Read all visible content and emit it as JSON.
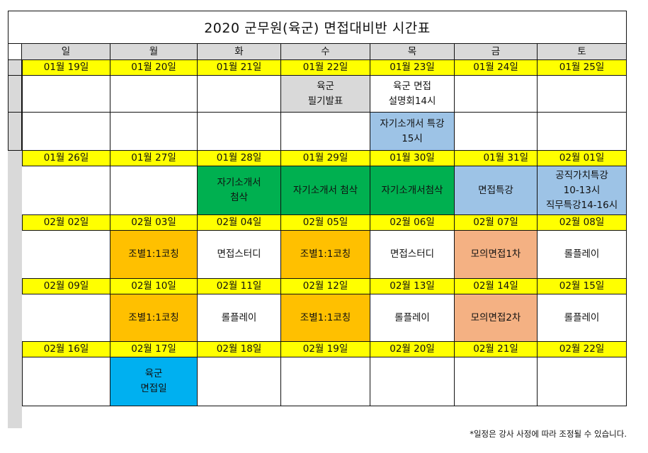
{
  "title": "2020 군무원(육군) 면접대비반 시간표",
  "colors": {
    "date_bg": "#ffff00",
    "header_bg": "#d9d9d9",
    "gray_event": "#d9d9d9",
    "blue_light": "#9dc3e6",
    "green": "#00b050",
    "orange": "#ffc000",
    "salmon": "#f4b183",
    "cyan": "#00b0f0",
    "white": "#ffffff"
  },
  "weekdays": [
    "일",
    "월",
    "화",
    "수",
    "목",
    "금",
    "토"
  ],
  "weeks": [
    {
      "dates": [
        "01월 19일",
        "01월 20일",
        "01월 21일",
        "01월 22일",
        "01월 23일",
        "01월 24일",
        "01월 25일"
      ],
      "rows": [
        [
          {
            "text": "",
            "color": "white"
          },
          {
            "text": "",
            "color": "white"
          },
          {
            "text": "",
            "color": "white"
          },
          {
            "text": "육군\n필기발표",
            "color": "gray_event"
          },
          {
            "text": "육군 면접\n설명회14시",
            "color": "white"
          },
          {
            "text": "",
            "color": "white"
          },
          {
            "text": "",
            "color": "white"
          }
        ],
        [
          {
            "text": "",
            "color": "white"
          },
          {
            "text": "",
            "color": "white"
          },
          {
            "text": "",
            "color": "white"
          },
          {
            "text": "",
            "color": "white"
          },
          {
            "text": "자기소개서 특강\n15시",
            "color": "blue_light"
          },
          {
            "text": "",
            "color": "white"
          },
          {
            "text": "",
            "color": "white"
          }
        ]
      ]
    },
    {
      "dates": [
        "01월 26일",
        "01월 27일",
        "01월 28일",
        "01월 29일",
        "01월 30일",
        "01월 31일",
        "02월 01일"
      ],
      "rows": [
        [
          {
            "text": "",
            "color": "white"
          },
          {
            "text": "",
            "color": "white"
          },
          {
            "text": "자기소개서\n첨삭",
            "color": "green"
          },
          {
            "text": "자기소개서 첨삭",
            "color": "green"
          },
          {
            "text": "자기소개서첨삭",
            "color": "green"
          },
          {
            "text": "면접특강",
            "color": "blue_light"
          },
          {
            "text": "공직가치특강\n10-13시\n직무특강14-16시",
            "color": "blue_light"
          }
        ]
      ]
    },
    {
      "dates": [
        "02월 02일",
        "02월 03일",
        "02월 04일",
        "02월 05일",
        "02월 06일",
        "02월 07일",
        "02월 08일"
      ],
      "rows": [
        [
          {
            "text": "",
            "color": "white"
          },
          {
            "text": "조별1:1코칭",
            "color": "orange"
          },
          {
            "text": "면접스터디",
            "color": "white"
          },
          {
            "text": "조별1:1코칭",
            "color": "orange"
          },
          {
            "text": "면접스터디",
            "color": "white"
          },
          {
            "text": "모의면접1차",
            "color": "salmon"
          },
          {
            "text": "롤플레이",
            "color": "white"
          }
        ]
      ]
    },
    {
      "dates": [
        "02월 09일",
        "02월 10일",
        "02월 11일",
        "02월 12일",
        "02월 13일",
        "02월 14일",
        "02월 15일"
      ],
      "rows": [
        [
          {
            "text": "",
            "color": "white"
          },
          {
            "text": "조별1:1코칭",
            "color": "orange"
          },
          {
            "text": "롤플레이",
            "color": "white"
          },
          {
            "text": "조별1:1코칭",
            "color": "orange"
          },
          {
            "text": "롤플레이",
            "color": "white"
          },
          {
            "text": "모의면접2차",
            "color": "salmon"
          },
          {
            "text": "롤플레이",
            "color": "white"
          }
        ]
      ]
    },
    {
      "dates": [
        "02월 16일",
        "02월 17일",
        "02월 18일",
        "02월 19일",
        "02월 20일",
        "02월 21일",
        "02월 22일"
      ],
      "rows": [
        [
          {
            "text": "",
            "color": "white"
          },
          {
            "text": "육군\n면접일",
            "color": "cyan"
          },
          {
            "text": "",
            "color": "white"
          },
          {
            "text": "",
            "color": "white"
          },
          {
            "text": "",
            "color": "white"
          },
          {
            "text": "",
            "color": "white"
          },
          {
            "text": "",
            "color": "white"
          }
        ]
      ]
    }
  ],
  "footnote": "*일정은 강사 사정에 따라 조정될 수 있습니다."
}
